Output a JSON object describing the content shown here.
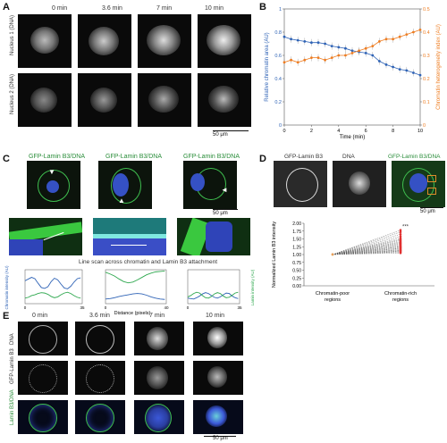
{
  "panels": {
    "A": {
      "label": "A",
      "times": [
        "0 min",
        "3.6 min",
        "7 min",
        "10 min"
      ],
      "rows": [
        "Nucleus 1 (DNA)",
        "Nucleus 2 (DNA)"
      ],
      "scale": "50 μm"
    },
    "B": {
      "label": "B",
      "xlabel": "Time (min)",
      "ylabel_left": "Relative chromatin area (AU)",
      "ylabel_right": "Chromatin heterogeneity index (AU)",
      "colors": {
        "area": "#2f63b6",
        "hetero": "#ee7d22"
      }
    },
    "C": {
      "label": "C",
      "headers": [
        "GFP-Lamin B3/DNA",
        "GFP-Lamin B3/DNA",
        "GFP-Lamin B3/DNA"
      ],
      "scale": "50 μm",
      "linescan_title": "Line scan across chromatin and Lamin B3 attachment",
      "xlabel": "Distance (pixels)",
      "ylabel_left": "Chromatin intensity (AU)",
      "ylabel_right": "Lamin intensity (AU)",
      "colors": {
        "chromatin": "#2f63b6",
        "lamin": "#2fa84f"
      }
    },
    "D": {
      "label": "D",
      "headers": [
        "GFP-Lamin B3",
        "DNA",
        "GFP-Lamin B3/DNA"
      ],
      "scale": "50 μm",
      "ylabel": "Normalized Lamin B3 intensity",
      "significance": "***",
      "accent": "#e03030"
    },
    "E": {
      "label": "E",
      "times": [
        "0 min",
        "3.6 min",
        "7 min",
        "10 min"
      ],
      "rows": [
        "DNA",
        "GFP-Lamin B3",
        "Lamin B3/DNA"
      ],
      "scale": "50 μm"
    }
  },
  "chart_data": [
    {
      "type": "line",
      "panel": "B",
      "xlabel": "Time (min)",
      "ylabel": "Relative chromatin area (AU)",
      "y2label": "Chromatin heterogeneity index (AU)",
      "xlim": [
        0,
        10
      ],
      "ylim": [
        0,
        1
      ],
      "y2lim": [
        0,
        0.5
      ],
      "xticks": [
        0,
        2,
        4,
        6,
        8,
        10
      ],
      "yticks": [
        0,
        0.2,
        0.4,
        0.6,
        0.8,
        1
      ],
      "y2ticks": [
        0,
        0.1,
        0.2,
        0.3,
        0.4,
        0.5
      ],
      "series": [
        {
          "axis": "left",
          "color": "#2f63b6",
          "x": [
            0,
            0.5,
            1,
            1.5,
            2,
            2.5,
            3,
            3.5,
            4,
            4.5,
            5,
            5.5,
            6,
            6.5,
            7,
            7.5,
            8,
            8.5,
            9,
            9.5,
            10
          ],
          "y": [
            0.76,
            0.74,
            0.73,
            0.72,
            0.71,
            0.71,
            0.7,
            0.68,
            0.67,
            0.66,
            0.64,
            0.63,
            0.62,
            0.6,
            0.55,
            0.52,
            0.5,
            0.48,
            0.47,
            0.45,
            0.43
          ]
        },
        {
          "axis": "right",
          "color": "#ee7d22",
          "x": [
            0,
            0.5,
            1,
            1.5,
            2,
            2.5,
            3,
            3.5,
            4,
            4.5,
            5,
            5.5,
            6,
            6.5,
            7,
            7.5,
            8,
            8.5,
            9,
            9.5,
            10
          ],
          "y": [
            0.27,
            0.28,
            0.27,
            0.28,
            0.29,
            0.29,
            0.28,
            0.29,
            0.3,
            0.3,
            0.31,
            0.32,
            0.33,
            0.34,
            0.36,
            0.37,
            0.37,
            0.38,
            0.39,
            0.4,
            0.41
          ]
        }
      ]
    },
    {
      "type": "line",
      "panel": "C",
      "xlabel": "Distance (pixels)",
      "ylabel": "Chromatin intensity (AU)",
      "y2label": "Lamin intensity (AU)",
      "subplots": [
        {
          "xlim": [
            0,
            35
          ],
          "x": [
            0,
            2,
            4,
            6,
            8,
            10,
            12,
            14,
            16,
            18,
            20,
            22,
            24,
            26,
            28,
            30,
            32,
            34
          ],
          "chromatin": [
            5400,
            5800,
            6200,
            5900,
            4800,
            3800,
            3600,
            4000,
            5200,
            6000,
            5600,
            4600,
            3700,
            3500,
            4100,
            5100,
            5900,
            6100
          ],
          "lamin": [
            1300,
            1500,
            1900,
            2100,
            2400,
            2600,
            2500,
            2200,
            1700,
            1400,
            1600,
            2100,
            2500,
            2700,
            2400,
            1900,
            1500,
            1300
          ]
        },
        {
          "xlim": [
            0,
            40
          ],
          "x": [
            0,
            3,
            6,
            9,
            12,
            15,
            18,
            21,
            24,
            27,
            30,
            33,
            36,
            39
          ],
          "chromatin": [
            1100,
            1200,
            1400,
            1700,
            1900,
            2100,
            2300,
            2400,
            2300,
            2000,
            1600,
            1300,
            1100,
            1000
          ],
          "lamin": [
            7400,
            7000,
            6500,
            5800,
            5200,
            4900,
            5100,
            5600,
            6200,
            6800,
            7200,
            7500,
            7600,
            7700
          ]
        },
        {
          "xlim": [
            0,
            35
          ],
          "x": [
            0,
            2,
            4,
            6,
            8,
            10,
            12,
            14,
            16,
            18,
            20,
            22,
            24,
            26,
            28,
            30,
            32,
            34
          ],
          "chromatin": [
            1300,
            1200,
            1100,
            1400,
            1800,
            2300,
            2600,
            2400,
            1900,
            1500,
            1300,
            1600,
            2100,
            2500,
            2400,
            1800,
            1400,
            1200
          ],
          "lamin": [
            1600,
            1900,
            2400,
            2700,
            2500,
            1900,
            1400,
            1300,
            1700,
            2300,
            2600,
            2400,
            1800,
            1400,
            1500,
            2000,
            2500,
            2700
          ]
        }
      ]
    },
    {
      "type": "scatter",
      "panel": "D",
      "categories": [
        "Chromatin-poor regions",
        "Chromatin-rich regions"
      ],
      "ylabel": "Normalized Lamin B3 intensity",
      "ylim": [
        0,
        2
      ],
      "yticks": [
        0,
        0.25,
        0.5,
        0.75,
        1,
        1.25,
        1.5,
        1.75,
        2
      ],
      "poor": [
        1,
        1,
        1,
        1,
        1,
        1,
        1,
        1,
        1,
        1,
        1,
        1,
        1,
        1,
        1,
        1,
        1,
        1,
        1,
        1,
        1,
        1
      ],
      "rich": [
        1.78,
        1.72,
        1.65,
        1.58,
        1.52,
        1.48,
        1.45,
        1.41,
        1.38,
        1.35,
        1.32,
        1.29,
        1.26,
        1.24,
        1.21,
        1.19,
        1.16,
        1.14,
        1.12,
        1.1,
        1.08,
        1.05
      ],
      "significance": "***"
    }
  ]
}
